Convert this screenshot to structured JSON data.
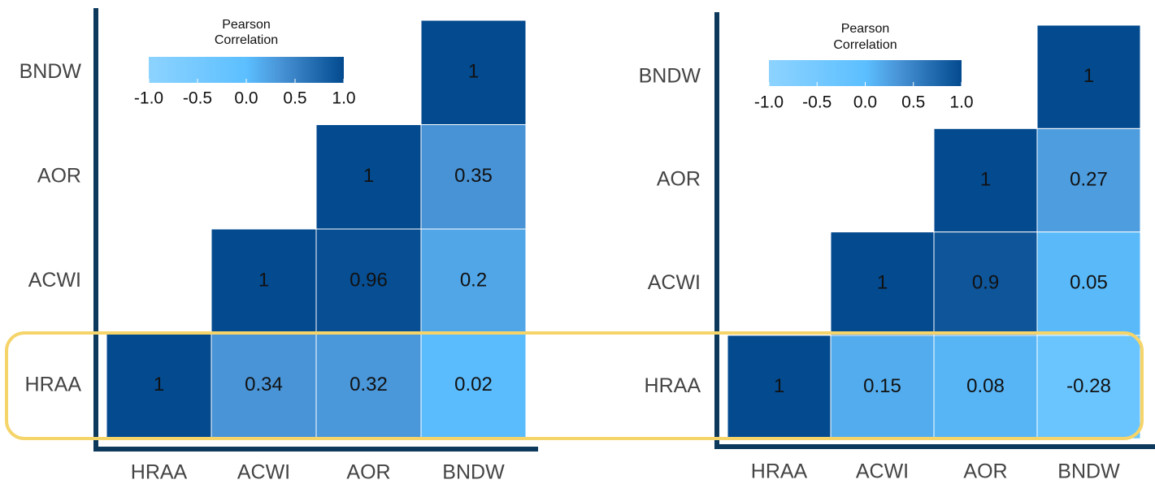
{
  "chart_data": [
    {
      "type": "heatmap",
      "x": [
        "HRAA",
        "ACWI",
        "AOR",
        "BNDW"
      ],
      "y": [
        "HRAA",
        "ACWI",
        "AOR",
        "BNDW"
      ],
      "z": [
        [
          1,
          0.34,
          0.32,
          0.02
        ],
        [
          null,
          1,
          0.96,
          0.2
        ],
        [
          null,
          null,
          1,
          0.35
        ],
        [
          null,
          null,
          null,
          1
        ]
      ],
      "colorbar": {
        "title": [
          "Pearson",
          "Correlation"
        ],
        "lim": [
          -1,
          1
        ],
        "ticks": [
          {
            "value": -1,
            "label": "-1.0"
          },
          -0.5,
          {
            "value": 0,
            "label": "0.0"
          },
          0.5,
          {
            "value": 1,
            "label": "1.0"
          }
        ],
        "colorscale": [
          [
            -1,
            "#8dd3ff"
          ],
          [
            0,
            "#5cbfff"
          ],
          [
            0.35,
            "#4893d6"
          ],
          [
            1,
            "#034a8f"
          ]
        ]
      }
    },
    {
      "type": "heatmap",
      "x": [
        "HRAA",
        "ACWI",
        "AOR",
        "BNDW"
      ],
      "y": [
        "HRAA",
        "ACWI",
        "AOR",
        "BNDW"
      ],
      "z": [
        [
          1,
          0.15,
          0.08,
          -0.28
        ],
        [
          null,
          1,
          0.9,
          0.05
        ],
        [
          null,
          null,
          1,
          0.27
        ],
        [
          null,
          null,
          null,
          1
        ]
      ],
      "colorbar": {
        "title": [
          "Pearson",
          "Correlation"
        ],
        "lim": [
          -1,
          1
        ],
        "ticks": [
          {
            "value": -1,
            "label": "-1.0"
          },
          -0.5,
          {
            "value": 0,
            "label": "0.0"
          },
          0.5,
          {
            "value": 1,
            "label": "1.0"
          }
        ],
        "colorscale": [
          [
            -1,
            "#8dd3ff"
          ],
          [
            0,
            "#5cbfff"
          ],
          [
            0.35,
            "#4893d6"
          ],
          [
            1,
            "#034a8f"
          ]
        ]
      }
    }
  ]
}
